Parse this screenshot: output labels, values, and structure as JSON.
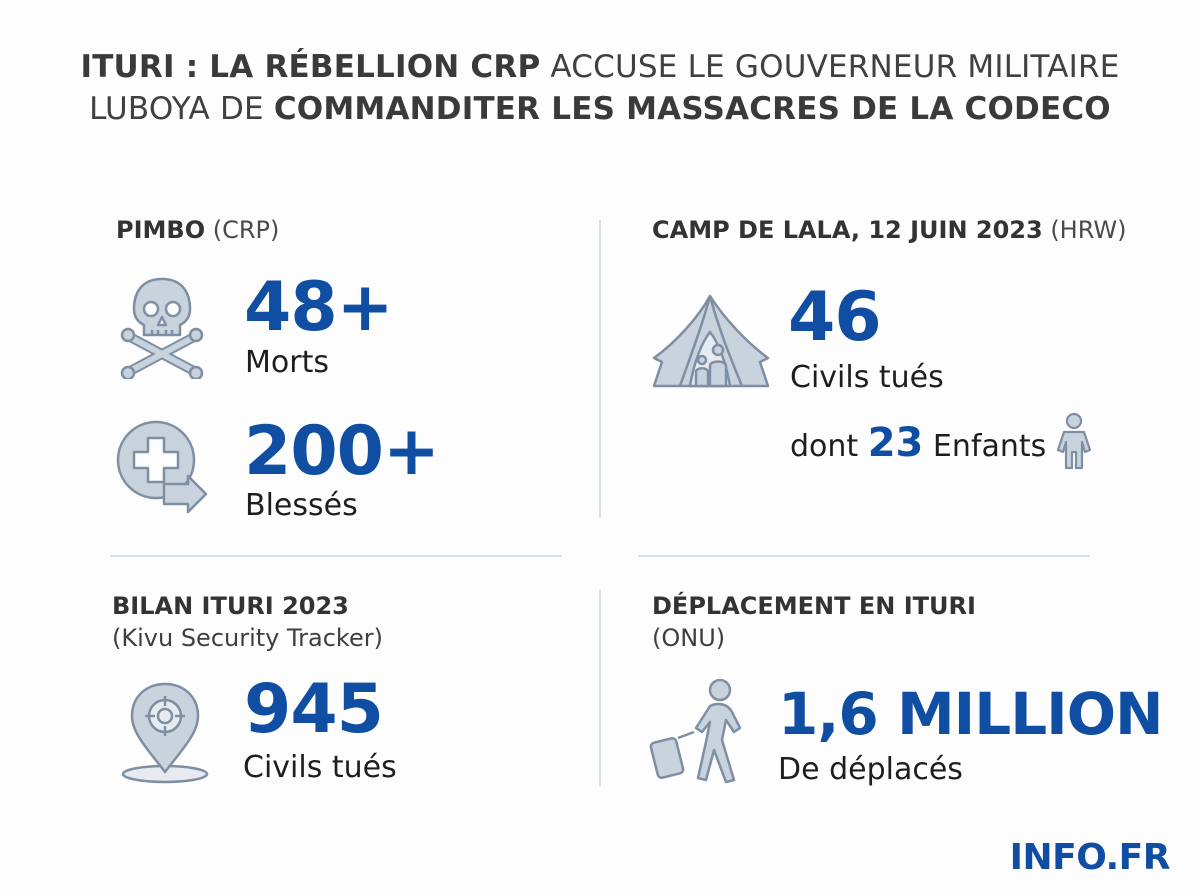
{
  "title": {
    "line1_bold": "ITURI : LA RÉBELLION CRP",
    "line1_rest": " ACCUSE LE GOUVERNEUR MILITAIRE",
    "line2_start": "LUBOYA DE ",
    "line2_bold": "COMMANDITER LES MASSACRES DE LA CODECO"
  },
  "pimbo": {
    "heading_bold": "PIMBO",
    "heading_sub": " (CRP)",
    "deaths_value": "48+",
    "deaths_label": "Morts",
    "injured_value": "200+",
    "injured_label": "Blessés"
  },
  "lala": {
    "heading_bold": "CAMP DE LALA, 12 JUIN 2023",
    "heading_sub": " (HRW)",
    "killed_value": "46",
    "killed_label": "Civils tués",
    "children_prefix": "dont ",
    "children_value": "23",
    "children_suffix": " Enfants"
  },
  "bilan": {
    "heading_bold": "BILAN ITURI 2023",
    "heading_sub": "(Kivu Security Tracker)",
    "killed_value": "945",
    "killed_label": "Civils tués"
  },
  "displacement": {
    "heading_bold": "DÉPLACEMENT EN ITURI",
    "heading_sub": "(ONU)",
    "value": "1,6 MILLION",
    "label": "De déplacés"
  },
  "brand": "INFO.FR",
  "icons": [
    "skull-crossbones-icon",
    "medical-cross-icon",
    "tent-icon",
    "child-icon",
    "location-pin-icon",
    "traveler-luggage-icon"
  ],
  "colors": {
    "accent": "#0f4ea3",
    "icon_fill": "#c9d3de",
    "icon_stroke": "#7f8fa3",
    "divider": "#d7e1ea"
  }
}
